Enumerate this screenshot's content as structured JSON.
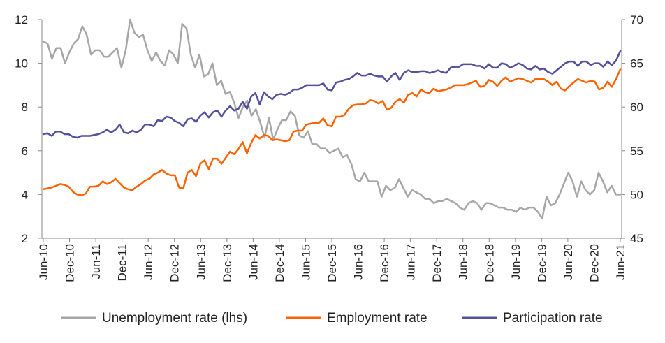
{
  "chart_data": {
    "type": "line",
    "title": "",
    "x_tick_labels": [
      "Jun-10",
      "Dec-10",
      "Jun-11",
      "Dec-11",
      "Jun-12",
      "Dec-12",
      "Jun-13",
      "Dec-13",
      "Jun-14",
      "Dec-14",
      "Jun-15",
      "Dec-15",
      "Jun-16",
      "Dec-16",
      "Jun-17",
      "Dec-17",
      "Jun-18",
      "Dec-18",
      "Jun-19",
      "Dec-19",
      "Jun-20",
      "Dec-20",
      "Jun-21"
    ],
    "x_range": [
      "Jun-10",
      "Jun-21"
    ],
    "y_left": {
      "label": "",
      "ticks": [
        2,
        4,
        6,
        8,
        10,
        12
      ],
      "ylim": [
        2,
        12
      ]
    },
    "y_right": {
      "label": "",
      "ticks": [
        45,
        50,
        55,
        60,
        65,
        70
      ],
      "ylim": [
        45,
        70
      ]
    },
    "grid": false,
    "legend_position": "bottom",
    "series": [
      {
        "name": "Unemployment rate (lhs)",
        "axis": "left",
        "color": "#a6a6a6",
        "values": [
          11.0,
          10.9,
          10.2,
          10.7,
          10.7,
          10.0,
          10.5,
          10.9,
          11.1,
          11.7,
          11.3,
          10.4,
          10.6,
          10.6,
          10.3,
          10.3,
          10.5,
          10.7,
          9.8,
          10.6,
          12.0,
          11.4,
          11.2,
          11.3,
          10.6,
          10.1,
          10.5,
          10.1,
          9.9,
          10.6,
          10.4,
          10.0,
          11.8,
          11.6,
          10.4,
          9.8,
          10.4,
          9.4,
          9.5,
          10.0,
          9.0,
          9.2,
          8.6,
          8.7,
          8.2,
          7.5,
          8.0,
          8.3,
          7.6,
          7.9,
          7.3,
          6.6,
          7.5,
          6.5,
          7.0,
          7.4,
          7.4,
          7.8,
          7.6,
          6.7,
          6.6,
          6.9,
          6.3,
          6.3,
          6.1,
          6.1,
          5.9,
          6.0,
          6.1,
          5.7,
          5.8,
          5.4,
          4.7,
          4.6,
          5.0,
          4.6,
          4.6,
          4.6,
          3.9,
          4.4,
          4.2,
          4.3,
          4.7,
          4.3,
          3.9,
          4.2,
          4.1,
          4.0,
          3.8,
          3.8,
          3.6,
          3.7,
          3.7,
          3.8,
          3.7,
          3.6,
          3.4,
          3.3,
          3.6,
          3.7,
          3.6,
          3.3,
          3.6,
          3.6,
          3.5,
          3.4,
          3.4,
          3.3,
          3.3,
          3.2,
          3.4,
          3.3,
          3.4,
          3.4,
          3.2,
          2.9,
          3.9,
          3.5,
          3.6,
          4.0,
          4.5,
          5.0,
          4.6,
          3.9,
          4.6,
          4.2,
          4.0,
          4.2,
          5.0,
          4.6,
          4.1,
          4.4,
          4.0,
          4.0
        ]
      },
      {
        "name": "Employment rate",
        "axis": "right",
        "color": "#ff6200",
        "values": [
          50.6,
          50.7,
          50.8,
          51.0,
          51.2,
          51.1,
          50.9,
          50.3,
          50.0,
          49.9,
          50.1,
          50.9,
          50.9,
          51.0,
          51.5,
          51.2,
          51.4,
          51.8,
          51.3,
          50.8,
          50.6,
          50.5,
          50.9,
          51.2,
          51.6,
          51.8,
          52.3,
          52.5,
          52.8,
          52.4,
          52.2,
          52.2,
          50.8,
          50.7,
          52.5,
          52.8,
          52.1,
          53.5,
          53.9,
          52.9,
          54.1,
          54.1,
          53.5,
          54.2,
          54.9,
          54.6,
          55.2,
          56.0,
          54.7,
          55.9,
          56.8,
          56.4,
          56.8,
          56.7,
          56.2,
          56.3,
          56.2,
          56.1,
          56.2,
          57.2,
          57.3,
          57.3,
          58.0,
          58.1,
          58.2,
          58.2,
          58.7,
          57.9,
          57.8,
          58.9,
          58.9,
          59.1,
          59.8,
          60.2,
          60.3,
          60.3,
          60.4,
          60.8,
          60.7,
          60.4,
          60.7,
          59.7,
          59.9,
          60.6,
          60.9,
          60.5,
          61.4,
          61.6,
          61.2,
          62.0,
          61.7,
          61.6,
          62.1,
          61.8,
          61.9,
          62.0,
          62.2,
          62.5,
          62.5,
          62.5,
          62.6,
          62.8,
          63.0,
          62.3,
          62.4,
          63.1,
          62.9,
          62.4,
          63.0,
          63.4,
          62.9,
          63.1,
          63.3,
          63.2,
          63.0,
          62.8,
          63.2,
          63.2,
          63.2,
          62.9,
          62.5,
          62.9,
          62.1,
          61.9,
          62.4,
          62.8,
          63.2,
          63.0,
          62.8,
          63.0,
          62.9,
          62.0,
          62.2,
          62.9,
          62.3,
          63.2,
          64.3
        ]
      },
      {
        "name": "Participation rate",
        "axis": "right",
        "color": "#525199",
        "values": [
          56.9,
          57.0,
          56.7,
          57.2,
          57.2,
          56.9,
          56.9,
          56.6,
          56.5,
          56.7,
          56.7,
          56.7,
          56.8,
          56.9,
          57.1,
          57.4,
          57.1,
          57.4,
          58.0,
          57.1,
          57.0,
          57.3,
          57.1,
          57.4,
          58.0,
          58.0,
          57.8,
          58.5,
          58.4,
          58.9,
          58.8,
          58.4,
          58.2,
          57.8,
          58.6,
          58.7,
          58.3,
          59.0,
          59.4,
          58.8,
          59.4,
          59.6,
          58.9,
          59.6,
          60.1,
          59.6,
          59.8,
          60.6,
          59.8,
          61.2,
          61.6,
          60.3,
          61.7,
          61.2,
          60.9,
          61.4,
          61.5,
          61.4,
          61.6,
          62.0,
          62.0,
          62.2,
          62.5,
          62.5,
          62.5,
          62.5,
          62.7,
          62.0,
          61.9,
          62.8,
          62.9,
          63.1,
          63.2,
          63.5,
          63.9,
          63.6,
          63.6,
          63.8,
          63.6,
          63.5,
          63.5,
          62.9,
          63.5,
          63.9,
          63.1,
          63.9,
          64.2,
          64.0,
          64.0,
          64.1,
          64.1,
          63.9,
          64.0,
          64.2,
          64.0,
          63.9,
          64.5,
          64.6,
          64.6,
          64.9,
          64.9,
          64.9,
          64.7,
          64.7,
          64.4,
          64.9,
          64.5,
          64.5,
          65.0,
          64.9,
          64.5,
          64.7,
          65.0,
          64.8,
          64.4,
          64.3,
          64.7,
          64.3,
          64.4,
          64.0,
          63.8,
          64.2,
          64.6,
          65.0,
          65.2,
          65.2,
          64.7,
          65.2,
          65.2,
          64.8,
          65.0,
          65.0,
          64.6,
          65.2,
          64.8,
          65.3,
          66.4
        ]
      }
    ]
  }
}
